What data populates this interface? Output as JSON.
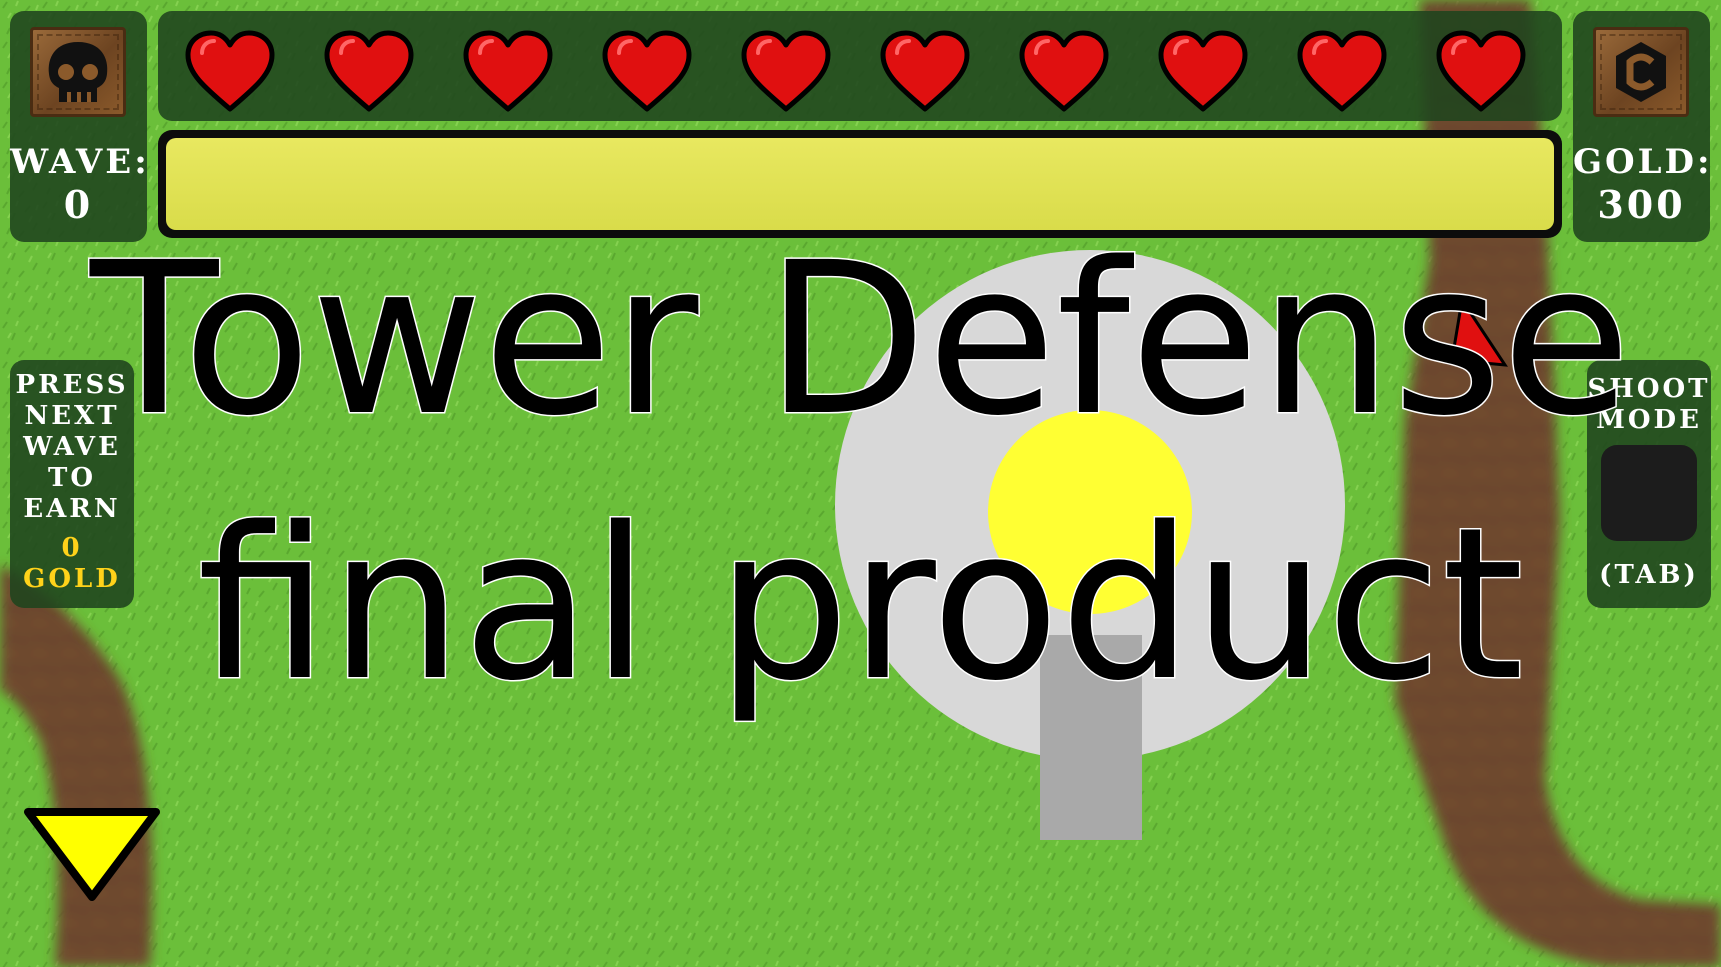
{
  "hud": {
    "wave_label": "Wave:",
    "wave_value": "0",
    "gold_label": "Gold:",
    "gold_value": "300",
    "next_wave_hint": [
      "Press",
      "next",
      "wave",
      "to",
      "earn"
    ],
    "next_wave_reward_amount": "0",
    "next_wave_reward_unit": "Gold",
    "shoot_mode_label": [
      "Shoot",
      "Mode"
    ],
    "shoot_mode_key": "(Tab)",
    "lives": 10,
    "base_health_fraction": 1.0
  },
  "overlay": {
    "title_line1": "Tower Defense",
    "title_line2": "final product"
  },
  "icons": {
    "wave_icon": "skull-icon",
    "gold_icon": "coin-icon",
    "life_icon": "heart-icon",
    "next_wave_button_icon": "triangle-down-icon"
  },
  "colors": {
    "grass": "#6bbf3a",
    "path": "#6e4a2e",
    "heart": "#e01010",
    "health_bar": "#e0e050",
    "tower_range": "#d8d8d8",
    "tower_core": "#ffff33",
    "tower_barrel": "#a9a9a9",
    "gold_text": "#ffd21a",
    "enemy": "#e01010"
  }
}
